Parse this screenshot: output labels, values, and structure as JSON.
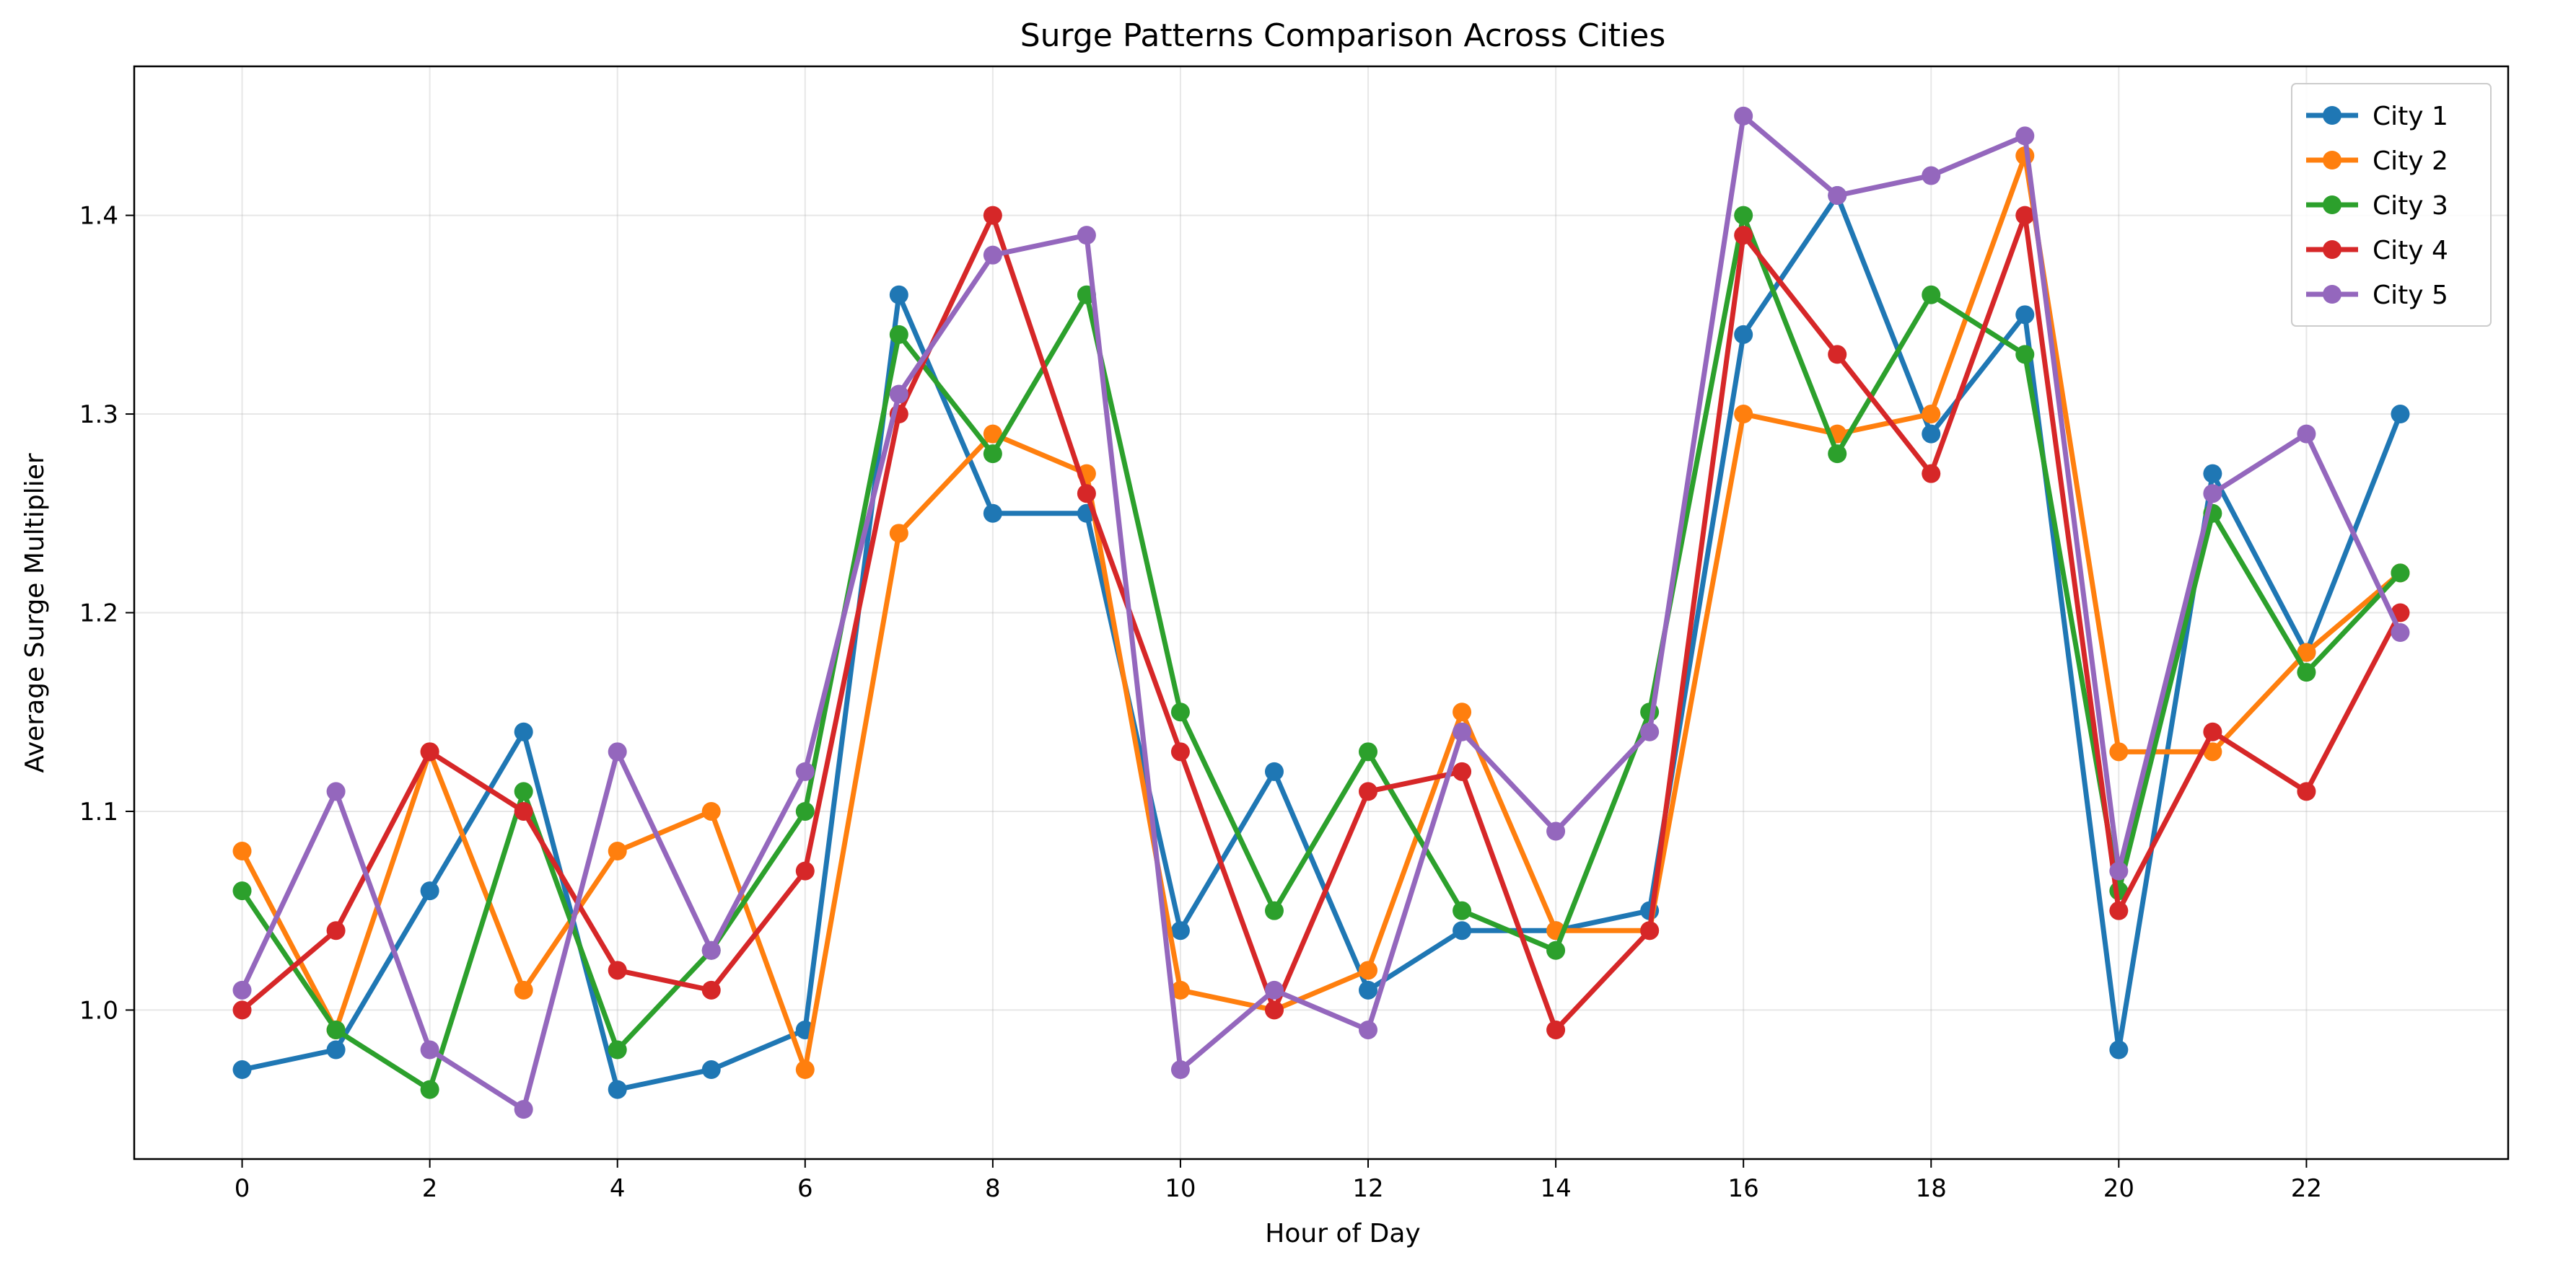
{
  "chart_data": {
    "type": "line",
    "title": "Surge Patterns Comparison Across Cities",
    "xlabel": "Hour of Day",
    "ylabel": "Average Surge Multiplier",
    "xlim": [
      -1.15,
      24.15
    ],
    "ylim": [
      0.925,
      1.475
    ],
    "x_ticks": [
      0,
      2,
      4,
      6,
      8,
      10,
      12,
      14,
      16,
      18,
      20,
      22
    ],
    "y_ticks": [
      1.0,
      1.1,
      1.2,
      1.3,
      1.4
    ],
    "y_tick_labels": [
      "1.0",
      "1.1",
      "1.2",
      "1.3",
      "1.4"
    ],
    "grid": true,
    "legend_position": "top-right",
    "x": [
      0,
      1,
      2,
      3,
      4,
      5,
      6,
      7,
      8,
      9,
      10,
      11,
      12,
      13,
      14,
      15,
      16,
      17,
      18,
      19,
      20,
      21,
      22,
      23
    ],
    "series": [
      {
        "name": "City 1",
        "color": "#1f77b4",
        "values": [
          0.97,
          0.98,
          1.06,
          1.14,
          0.96,
          0.97,
          0.99,
          1.36,
          1.25,
          1.25,
          1.04,
          1.12,
          1.01,
          1.04,
          1.04,
          1.05,
          1.34,
          1.41,
          1.29,
          1.35,
          0.98,
          1.27,
          1.18,
          1.3
        ]
      },
      {
        "name": "City 2",
        "color": "#ff7f0e",
        "values": [
          1.08,
          0.99,
          1.13,
          1.01,
          1.08,
          1.1,
          0.97,
          1.24,
          1.29,
          1.27,
          1.01,
          1.0,
          1.02,
          1.15,
          1.04,
          1.04,
          1.3,
          1.29,
          1.3,
          1.43,
          1.13,
          1.13,
          1.18,
          1.22
        ]
      },
      {
        "name": "City 3",
        "color": "#2ca02c",
        "values": [
          1.06,
          0.99,
          0.96,
          1.11,
          0.98,
          1.03,
          1.1,
          1.34,
          1.28,
          1.36,
          1.15,
          1.05,
          1.13,
          1.05,
          1.03,
          1.15,
          1.4,
          1.28,
          1.36,
          1.33,
          1.06,
          1.25,
          1.17,
          1.22
        ]
      },
      {
        "name": "City 4",
        "color": "#d62728",
        "values": [
          1.0,
          1.04,
          1.13,
          1.1,
          1.02,
          1.01,
          1.07,
          1.3,
          1.4,
          1.26,
          1.13,
          1.0,
          1.11,
          1.12,
          0.99,
          1.04,
          1.39,
          1.33,
          1.27,
          1.4,
          1.05,
          1.14,
          1.11,
          1.2
        ]
      },
      {
        "name": "City 5",
        "color": "#9467bd",
        "values": [
          1.01,
          1.11,
          0.98,
          0.95,
          1.13,
          1.03,
          1.12,
          1.31,
          1.38,
          1.39,
          0.97,
          1.01,
          0.99,
          1.14,
          1.09,
          1.14,
          1.45,
          1.41,
          1.42,
          1.44,
          1.07,
          1.26,
          1.29,
          1.19
        ]
      }
    ]
  }
}
